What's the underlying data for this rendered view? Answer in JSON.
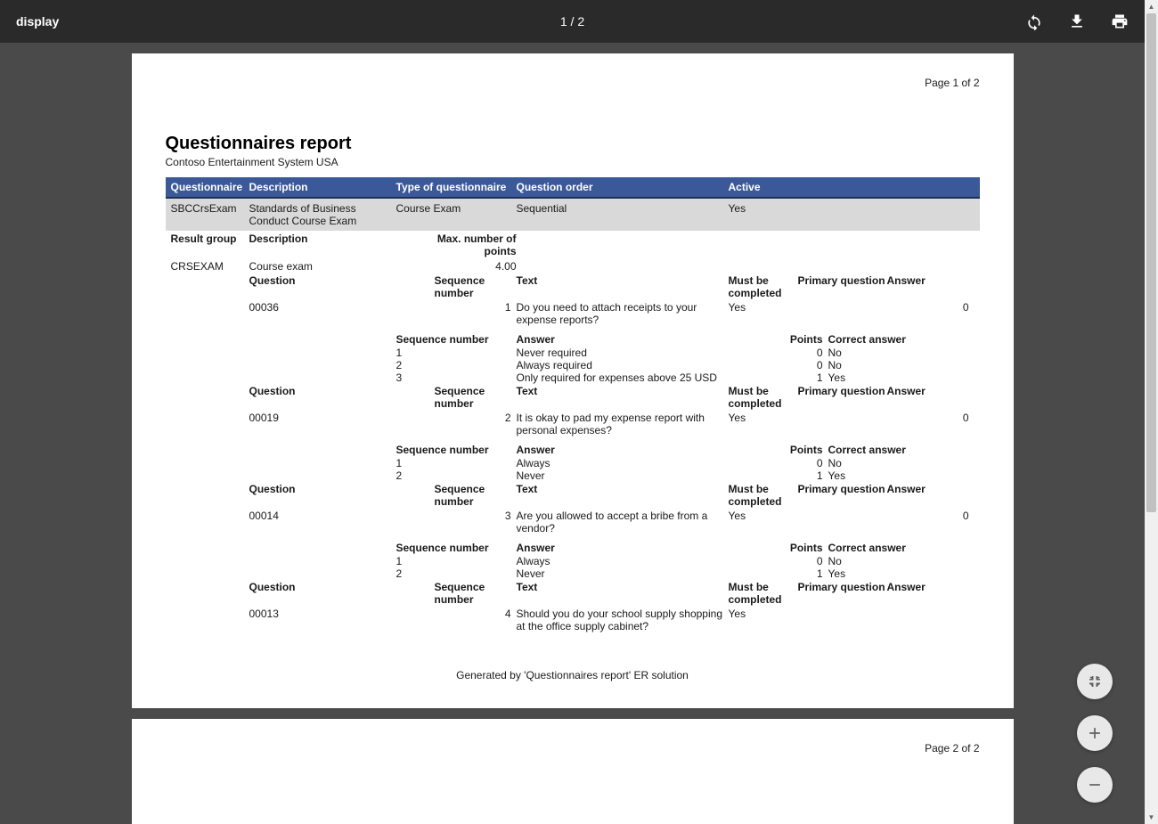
{
  "toolbar": {
    "title": "display",
    "page_indicator": "1 / 2"
  },
  "page1": {
    "page_number": "Page 1 of 2",
    "title": "Questionnaires report",
    "subtitle": "Contoso Entertainment System USA",
    "headers": {
      "questionnaire": "Questionnaire",
      "description": "Description",
      "type": "Type of questionnaire",
      "order": "Question order",
      "active": "Active"
    },
    "main_row": {
      "questionnaire": "SBCCrsExam",
      "description": "Standards of Business Conduct Course Exam",
      "type": "Course Exam",
      "order": "Sequential",
      "active": "Yes"
    },
    "result_group": {
      "hdr_rg": "Result group",
      "hdr_desc": "Description",
      "hdr_max": "Max. number of points",
      "code": "CRSEXAM",
      "desc": "Course exam",
      "max": "4.00"
    },
    "labels": {
      "question": "Question",
      "seqnum": "Sequence number",
      "text": "Text",
      "must": "Must be completed",
      "primary": "Primary question",
      "answer": "Answer",
      "points": "Points",
      "correct": "Correct answer"
    },
    "questions": [
      {
        "id": "00036",
        "seq": "1",
        "text": "Do you need to attach receipts to your expense reports?",
        "must": "Yes",
        "primary": "",
        "answer_col": "0",
        "answers": [
          {
            "seq": "1",
            "text": "Never required",
            "pts": "0",
            "correct": "No"
          },
          {
            "seq": "2",
            "text": "Always required",
            "pts": "0",
            "correct": "No"
          },
          {
            "seq": "3",
            "text": "Only required for expenses above 25 USD",
            "pts": "1",
            "correct": "Yes"
          }
        ]
      },
      {
        "id": "00019",
        "seq": "2",
        "text": "It is okay to pad my expense report with personal expenses?",
        "must": "Yes",
        "primary": "",
        "answer_col": "0",
        "answers": [
          {
            "seq": "1",
            "text": "Always",
            "pts": "0",
            "correct": "No"
          },
          {
            "seq": "2",
            "text": "Never",
            "pts": "1",
            "correct": "Yes"
          }
        ]
      },
      {
        "id": "00014",
        "seq": "3",
        "text": "Are you allowed to accept a bribe from a vendor?",
        "must": "Yes",
        "primary": "",
        "answer_col": "0",
        "answers": [
          {
            "seq": "1",
            "text": "Always",
            "pts": "0",
            "correct": "No"
          },
          {
            "seq": "2",
            "text": "Never",
            "pts": "1",
            "correct": "Yes"
          }
        ]
      },
      {
        "id": "00013",
        "seq": "4",
        "text": "Should you do your school supply shopping at the office supply cabinet?",
        "must": "Yes",
        "primary": "",
        "answer_col": "",
        "answers": []
      }
    ],
    "footer": "Generated by 'Questionnaires report' ER solution"
  },
  "page2": {
    "page_number": "Page 2 of 2"
  }
}
